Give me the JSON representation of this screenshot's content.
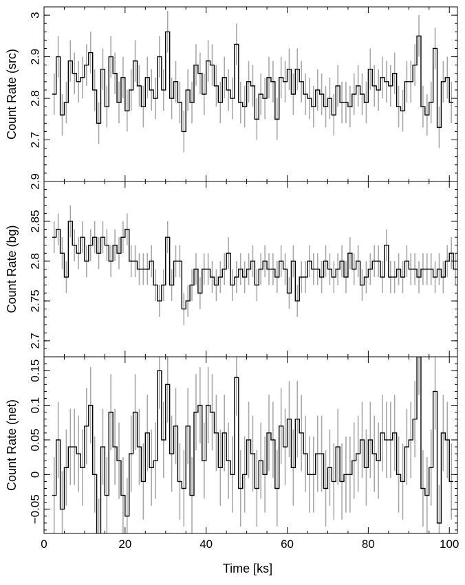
{
  "chart_data": [
    {
      "type": "line",
      "ylabel": "Count Rate (src)",
      "xlabel": "",
      "xlim": [
        0,
        102
      ],
      "ylim": [
        2.6,
        3.02
      ],
      "yticks": [
        2.7,
        2.8,
        2.9,
        3
      ],
      "ytick_labels": [
        "2.7",
        "2.8",
        "2.9",
        "3"
      ],
      "bin_width": 1,
      "x_start": 2,
      "series": [
        {
          "values": [
            2.81,
            2.9,
            2.76,
            2.79,
            2.89,
            2.86,
            2.84,
            2.85,
            2.88,
            2.91,
            2.82,
            2.74,
            2.87,
            2.78,
            2.9,
            2.86,
            2.79,
            2.85,
            2.77,
            2.82,
            2.89,
            2.83,
            2.78,
            2.85,
            2.82,
            2.8,
            2.9,
            2.82,
            2.96,
            2.8,
            2.84,
            2.79,
            2.72,
            2.82,
            2.79,
            2.88,
            2.86,
            2.81,
            2.89,
            2.88,
            2.83,
            2.79,
            2.85,
            2.82,
            2.8,
            2.93,
            2.79,
            2.78,
            2.84,
            2.83,
            2.75,
            2.81,
            2.8,
            2.85,
            2.84,
            2.75,
            2.85,
            2.84,
            2.87,
            2.81,
            2.87,
            2.84,
            2.81,
            2.8,
            2.78,
            2.82,
            2.81,
            2.78,
            2.8,
            2.76,
            2.83,
            2.79,
            2.79,
            2.78,
            2.81,
            2.83,
            2.81,
            2.79,
            2.87,
            2.83,
            2.82,
            2.85,
            2.84,
            2.83,
            2.86,
            2.78,
            2.77,
            2.84,
            2.84,
            2.88,
            2.95,
            2.78,
            2.76,
            2.79,
            2.92,
            2.73,
            2.84,
            2.85,
            2.79
          ],
          "errors": 0.05
        }
      ]
    },
    {
      "type": "line",
      "ylabel": "Count Rate (bg)",
      "xlabel": "",
      "xlim": [
        0,
        102
      ],
      "ylim": [
        2.68,
        2.9
      ],
      "yticks": [
        2.7,
        2.75,
        2.8,
        2.85,
        2.9
      ],
      "ytick_labels": [
        "2.7",
        "2.75",
        "2.8",
        "2.85",
        "2.9"
      ],
      "bin_width": 1,
      "x_start": 2,
      "series": [
        {
          "values": [
            2.83,
            2.84,
            2.81,
            2.78,
            2.85,
            2.82,
            2.81,
            2.83,
            2.8,
            2.82,
            2.83,
            2.81,
            2.83,
            2.82,
            2.8,
            2.82,
            2.81,
            2.83,
            2.84,
            2.8,
            2.8,
            2.79,
            2.79,
            2.79,
            2.8,
            2.77,
            2.75,
            2.77,
            2.83,
            2.77,
            2.8,
            2.8,
            2.74,
            2.75,
            2.77,
            2.79,
            2.76,
            2.79,
            2.79,
            2.78,
            2.77,
            2.78,
            2.79,
            2.81,
            2.77,
            2.78,
            2.79,
            2.78,
            2.79,
            2.8,
            2.77,
            2.79,
            2.8,
            2.79,
            2.79,
            2.78,
            2.8,
            2.79,
            2.76,
            2.8,
            2.75,
            2.78,
            2.78,
            2.8,
            2.79,
            2.79,
            2.78,
            2.8,
            2.79,
            2.78,
            2.79,
            2.8,
            2.78,
            2.81,
            2.79,
            2.8,
            2.77,
            2.78,
            2.79,
            2.8,
            2.8,
            2.78,
            2.82,
            2.78,
            2.78,
            2.79,
            2.78,
            2.8,
            2.79,
            2.79,
            2.78,
            2.79,
            2.79,
            2.79,
            2.78,
            2.79,
            2.78,
            2.8,
            2.81,
            2.79
          ],
          "errors": 0.02
        }
      ]
    },
    {
      "type": "line",
      "ylabel": "Count Rate (net)",
      "xlabel": "Time [ks]",
      "xlim": [
        0,
        102
      ],
      "ylim": [
        -0.085,
        0.17
      ],
      "yticks": [
        -0.05,
        0,
        0.05,
        0.1,
        0.15
      ],
      "ytick_labels": [
        "−0.05",
        "0",
        "0.05",
        "0.1",
        "0.15"
      ],
      "xticks": [
        0,
        20,
        40,
        60,
        80,
        100
      ],
      "xtick_labels": [
        "0",
        "20",
        "40",
        "60",
        "80",
        "100"
      ],
      "bin_width": 1,
      "x_start": 2,
      "series": [
        {
          "values": [
            -0.03,
            0.05,
            -0.05,
            0.01,
            0.04,
            0.04,
            0.03,
            0.01,
            0.07,
            0.1,
            0.0,
            -0.09,
            0.04,
            -0.03,
            0.09,
            0.04,
            0.02,
            -0.03,
            -0.06,
            0.03,
            0.09,
            0.04,
            -0.01,
            0.06,
            0.01,
            0.02,
            0.15,
            0.05,
            0.13,
            0.03,
            0.07,
            -0.01,
            -0.02,
            0.07,
            -0.03,
            0.09,
            0.1,
            0.02,
            0.1,
            0.09,
            0.06,
            0.01,
            0.06,
            0.02,
            0.0,
            0.14,
            -0.02,
            0.0,
            0.05,
            0.03,
            -0.02,
            0.02,
            0.0,
            0.06,
            0.05,
            -0.02,
            0.07,
            0.04,
            0.08,
            0.01,
            0.08,
            0.06,
            0.03,
            0.0,
            0.0,
            0.03,
            0.03,
            -0.02,
            0.01,
            -0.01,
            0.04,
            -0.01,
            0.0,
            0.0,
            0.02,
            0.03,
            0.05,
            0.01,
            0.05,
            0.03,
            0.02,
            0.06,
            0.05,
            0.05,
            0.06,
            0.0,
            -0.01,
            0.04,
            0.05,
            0.08,
            0.17,
            -0.02,
            -0.03,
            0.01,
            0.12,
            -0.07,
            0.06,
            0.05,
            -0.01
          ],
          "errors": 0.055
        }
      ]
    }
  ]
}
